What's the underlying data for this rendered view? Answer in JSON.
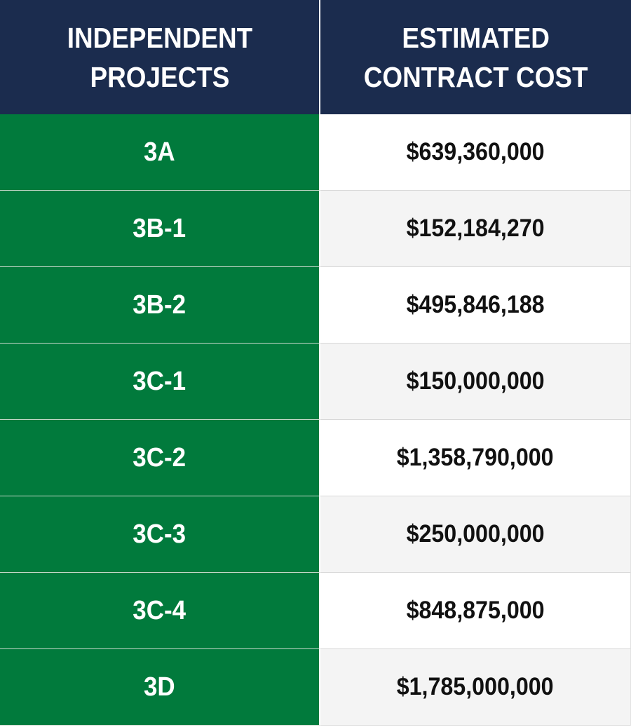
{
  "header": {
    "col1": "INDEPENDENT\nPROJECTS",
    "col2": "ESTIMATED\nCONTRACT COST"
  },
  "rows": [
    {
      "project": "3A",
      "cost": "$639,360,000"
    },
    {
      "project": "3B-1",
      "cost": "$152,184,270"
    },
    {
      "project": "3B-2",
      "cost": "$495,846,188"
    },
    {
      "project": "3C-1",
      "cost": "$150,000,000"
    },
    {
      "project": "3C-2",
      "cost": "$1,358,790,000"
    },
    {
      "project": "3C-3",
      "cost": "$250,000,000"
    },
    {
      "project": "3C-4",
      "cost": "$848,875,000"
    },
    {
      "project": "3D",
      "cost": "$1,785,000,000"
    }
  ],
  "colors": {
    "header_bg": "#1b2c4e",
    "project_bg": "#017a3c",
    "row_alt_bg": "#f4f4f4"
  }
}
